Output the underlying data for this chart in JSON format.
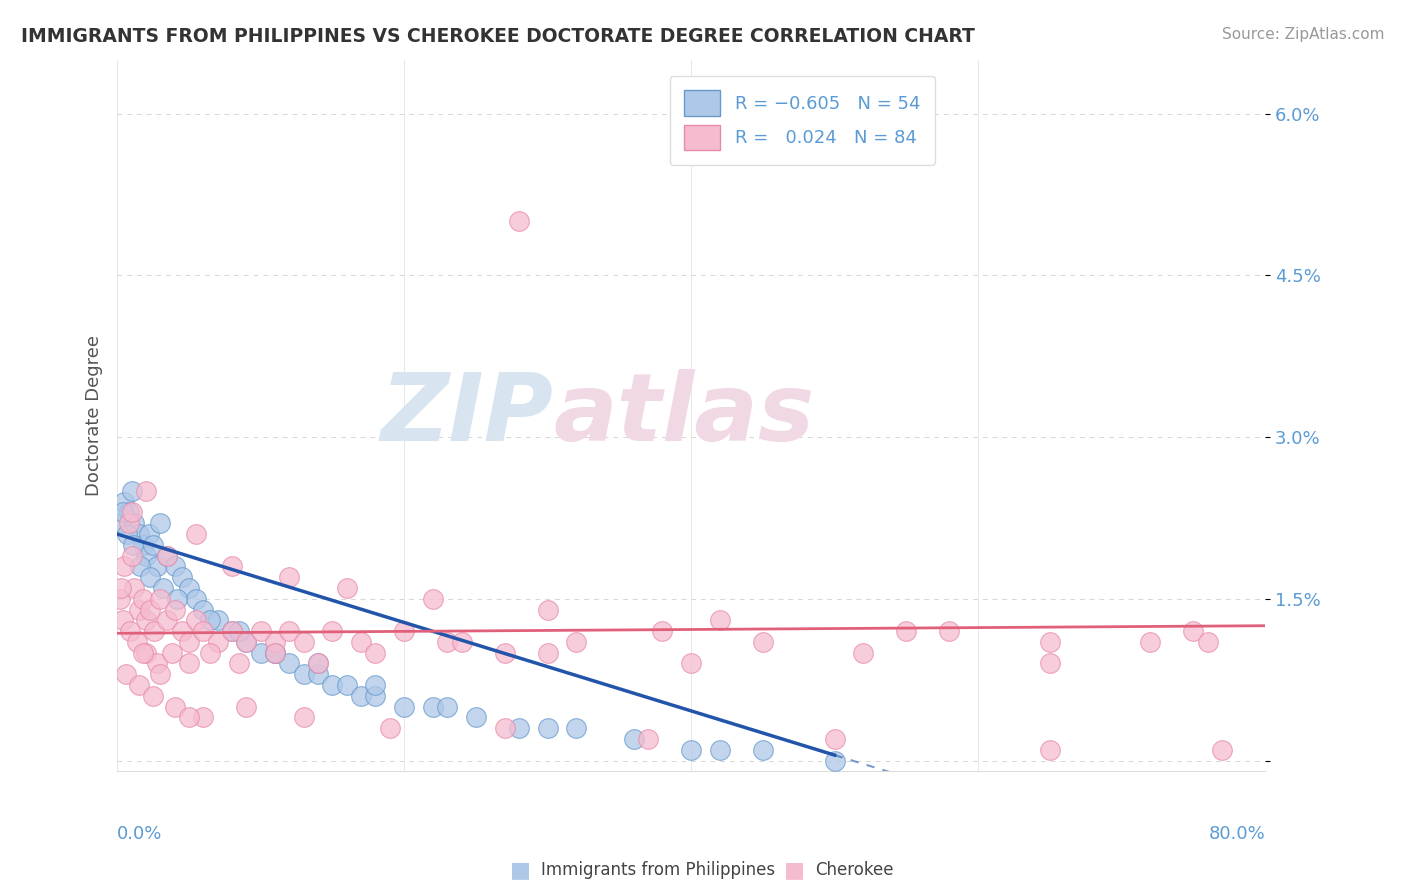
{
  "title": "IMMIGRANTS FROM PHILIPPINES VS CHEROKEE DOCTORATE DEGREE CORRELATION CHART",
  "source": "Source: ZipAtlas.com",
  "ylabel": "Doctorate Degree",
  "xmin": 0.0,
  "xmax": 80.0,
  "ymin": -0.1,
  "ymax": 6.5,
  "ytick_vals": [
    0.0,
    1.5,
    3.0,
    4.5,
    6.0
  ],
  "ytick_labels": [
    "",
    "1.5%",
    "3.0%",
    "4.5%",
    "6.0%"
  ],
  "blue_color": "#aec8e8",
  "blue_edge_color": "#6699cc",
  "pink_color": "#f5bcd0",
  "pink_edge_color": "#e88aaa",
  "blue_line_color": "#2255aa",
  "pink_line_color": "#e0607a",
  "watermark_color": "#d8e4f0",
  "watermark_pink": "#f0d8e4",
  "background_color": "#ffffff",
  "grid_color": "#cccccc",
  "title_color": "#333333",
  "tick_label_color": "#5b9bd5",
  "blue_x": [
    0.3,
    0.5,
    0.8,
    1.0,
    1.2,
    1.5,
    1.8,
    2.0,
    2.2,
    2.5,
    2.8,
    3.0,
    3.5,
    4.0,
    4.5,
    5.0,
    5.5,
    6.0,
    7.0,
    8.0,
    9.0,
    10.0,
    11.0,
    12.0,
    13.0,
    14.0,
    15.0,
    16.0,
    17.0,
    18.0,
    20.0,
    22.0,
    25.0,
    28.0,
    32.0,
    36.0,
    40.0,
    45.0,
    50.0,
    0.4,
    0.7,
    1.1,
    1.6,
    2.3,
    3.2,
    4.2,
    6.5,
    8.5,
    11.0,
    14.0,
    18.0,
    23.0,
    30.0,
    42.0
  ],
  "blue_y": [
    2.2,
    2.4,
    2.3,
    2.5,
    2.2,
    2.1,
    2.0,
    1.9,
    2.1,
    2.0,
    1.8,
    2.2,
    1.9,
    1.8,
    1.7,
    1.6,
    1.5,
    1.4,
    1.3,
    1.2,
    1.1,
    1.0,
    1.0,
    0.9,
    0.8,
    0.8,
    0.7,
    0.7,
    0.6,
    0.6,
    0.5,
    0.5,
    0.4,
    0.3,
    0.3,
    0.2,
    0.1,
    0.1,
    0.0,
    2.3,
    2.1,
    2.0,
    1.8,
    1.7,
    1.6,
    1.5,
    1.3,
    1.2,
    1.0,
    0.9,
    0.7,
    0.5,
    0.3,
    0.1
  ],
  "pink_x": [
    0.2,
    0.5,
    0.8,
    1.0,
    1.2,
    1.5,
    1.8,
    2.0,
    2.3,
    2.6,
    3.0,
    3.5,
    4.0,
    4.5,
    5.0,
    5.5,
    6.0,
    7.0,
    8.0,
    9.0,
    10.0,
    11.0,
    12.0,
    13.0,
    15.0,
    17.0,
    20.0,
    23.0,
    27.0,
    32.0,
    38.0,
    45.0,
    55.0,
    65.0,
    75.0,
    0.4,
    0.9,
    1.4,
    2.0,
    2.8,
    3.8,
    5.0,
    6.5,
    8.5,
    11.0,
    14.0,
    18.0,
    24.0,
    30.0,
    40.0,
    52.0,
    65.0,
    76.0,
    1.0,
    2.0,
    3.5,
    5.5,
    8.0,
    12.0,
    16.0,
    22.0,
    30.0,
    42.0,
    58.0,
    72.0,
    0.6,
    1.5,
    2.5,
    4.0,
    6.0,
    9.0,
    13.0,
    19.0,
    27.0,
    37.0,
    50.0,
    65.0,
    77.0,
    0.3,
    1.8,
    3.0,
    5.0,
    28.0
  ],
  "pink_y": [
    1.5,
    1.8,
    2.2,
    1.9,
    1.6,
    1.4,
    1.5,
    1.3,
    1.4,
    1.2,
    1.5,
    1.3,
    1.4,
    1.2,
    1.1,
    1.3,
    1.2,
    1.1,
    1.2,
    1.1,
    1.2,
    1.1,
    1.2,
    1.1,
    1.2,
    1.1,
    1.2,
    1.1,
    1.0,
    1.1,
    1.2,
    1.1,
    1.2,
    1.1,
    1.2,
    1.3,
    1.2,
    1.1,
    1.0,
    0.9,
    1.0,
    0.9,
    1.0,
    0.9,
    1.0,
    0.9,
    1.0,
    1.1,
    1.0,
    0.9,
    1.0,
    0.9,
    1.1,
    2.3,
    2.5,
    1.9,
    2.1,
    1.8,
    1.7,
    1.6,
    1.5,
    1.4,
    1.3,
    1.2,
    1.1,
    0.8,
    0.7,
    0.6,
    0.5,
    0.4,
    0.5,
    0.4,
    0.3,
    0.3,
    0.2,
    0.2,
    0.1,
    0.1,
    1.6,
    1.0,
    0.8,
    0.4,
    5.0
  ],
  "blue_trend_x0": 0.0,
  "blue_trend_x1": 50.0,
  "blue_trend_y0": 2.1,
  "blue_trend_y1": 0.05,
  "pink_trend_x0": 0.0,
  "pink_trend_x1": 80.0,
  "pink_trend_y0": 1.18,
  "pink_trend_y1": 1.25
}
